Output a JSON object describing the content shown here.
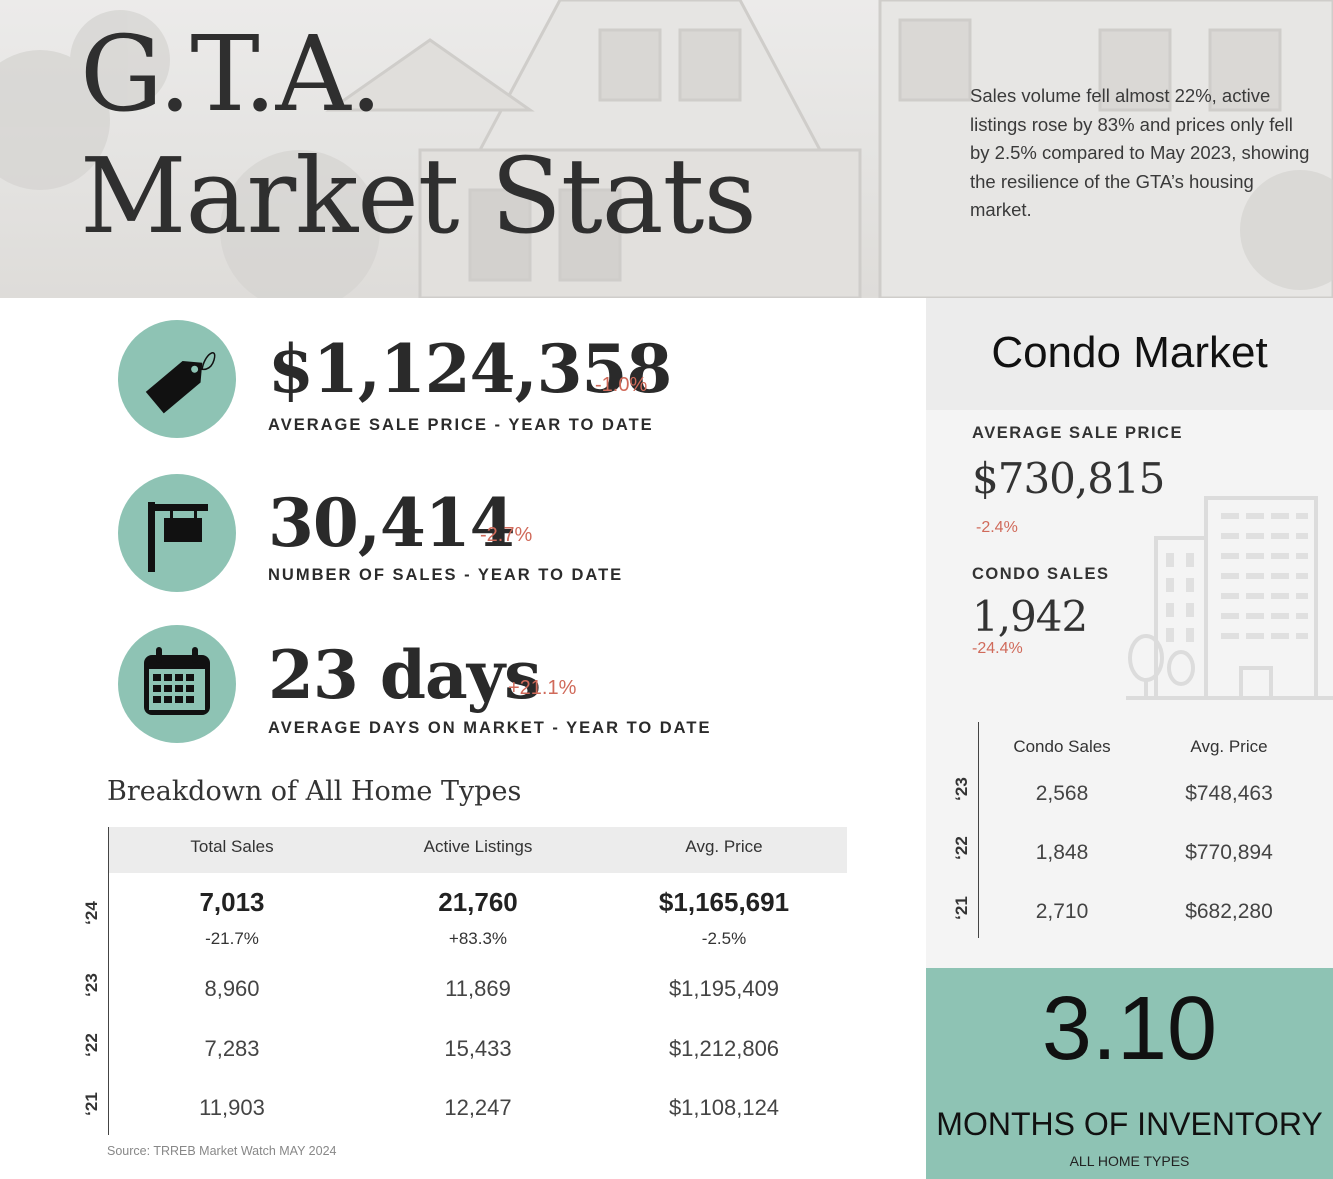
{
  "hero": {
    "title_line1": "G.T.A.",
    "title_line2": "Market Stats",
    "intro": "Sales volume fell almost 22%, active listings rose by 83% and prices only fell by 2.5% compared to May 2023, showing the resilience of the GTA’s housing market."
  },
  "stats": [
    {
      "icon": "price-tag-icon",
      "value": "$1,124,358",
      "change": "-1.0%",
      "label": "AVERAGE SALE PRICE - YEAR TO DATE"
    },
    {
      "icon": "for-sale-sign-icon",
      "value": "30,414",
      "change": "-2.7%",
      "label": "NUMBER OF SALES - YEAR TO DATE"
    },
    {
      "icon": "calendar-icon",
      "value": "23 days",
      "change": "+21.1%",
      "label": "AVERAGE DAYS ON MARKET - YEAR TO DATE"
    }
  ],
  "breakdown": {
    "title": "Breakdown of All Home Types",
    "headers": [
      "Total Sales",
      "Active Listings",
      "Avg. Price"
    ],
    "rows": [
      {
        "year": "‘24",
        "values": [
          "7,013",
          "21,760",
          "$1,165,691"
        ],
        "changes": [
          "-21.7%",
          "+83.3%",
          "-2.5%"
        ]
      },
      {
        "year": "‘23",
        "values": [
          "8,960",
          "11,869",
          "$1,195,409"
        ]
      },
      {
        "year": "‘22",
        "values": [
          "7,283",
          "15,433",
          "$1,212,806"
        ]
      },
      {
        "year": "‘21",
        "values": [
          "11,903",
          "12,247",
          "$1,108,124"
        ]
      }
    ],
    "source": "Source: TRREB Market Watch MAY 2024"
  },
  "condo": {
    "title": "Condo Market",
    "avg_price_label": "AVERAGE SALE PRICE",
    "avg_price_value": "$730,815",
    "avg_price_change": "-2.4%",
    "sales_label": "CONDO SALES",
    "sales_value": "1,942",
    "sales_change": "-24.4%",
    "headers": [
      "Condo Sales",
      "Avg. Price"
    ],
    "rows": [
      {
        "year": "‘23",
        "values": [
          "2,568",
          "$748,463"
        ]
      },
      {
        "year": "‘22",
        "values": [
          "1,848",
          "$770,894"
        ]
      },
      {
        "year": "‘21",
        "values": [
          "2,710",
          "$682,280"
        ]
      }
    ]
  },
  "inventory": {
    "value": "3.10",
    "label": "MONTHS OF INVENTORY",
    "sublabel": "ALL HOME TYPES"
  },
  "colors": {
    "accent": "#8ec3b4",
    "negative": "#d06a5a"
  }
}
